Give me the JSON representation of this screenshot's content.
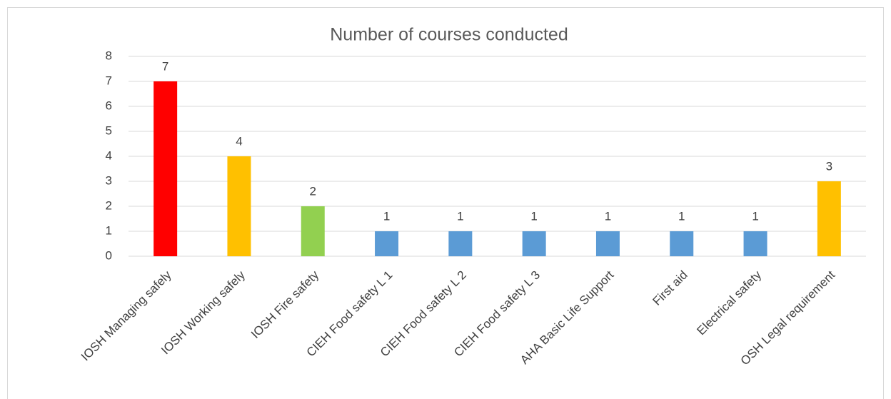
{
  "chart_data": {
    "type": "bar",
    "title": "Number of courses conducted",
    "categories": [
      "IOSH Managing safely",
      "IOSH Working safely",
      "IOSH Fire safety",
      "CIEH Food safety L 1",
      "CIEH Food safety L 2",
      "CIEH Food safety L 3",
      "AHA Basic Life Support",
      "First aid",
      "Electrical safety",
      "OSH Legal requirement"
    ],
    "values": [
      7,
      4,
      2,
      1,
      1,
      1,
      1,
      1,
      1,
      3
    ],
    "colors": [
      "#ff0000",
      "#ffc000",
      "#92d050",
      "#5b9bd5",
      "#5b9bd5",
      "#5b9bd5",
      "#5b9bd5",
      "#5b9bd5",
      "#5b9bd5",
      "#ffc000"
    ],
    "ylim": [
      0,
      8
    ],
    "yticks": [
      0,
      1,
      2,
      3,
      4,
      5,
      6,
      7,
      8
    ],
    "grid": true
  }
}
